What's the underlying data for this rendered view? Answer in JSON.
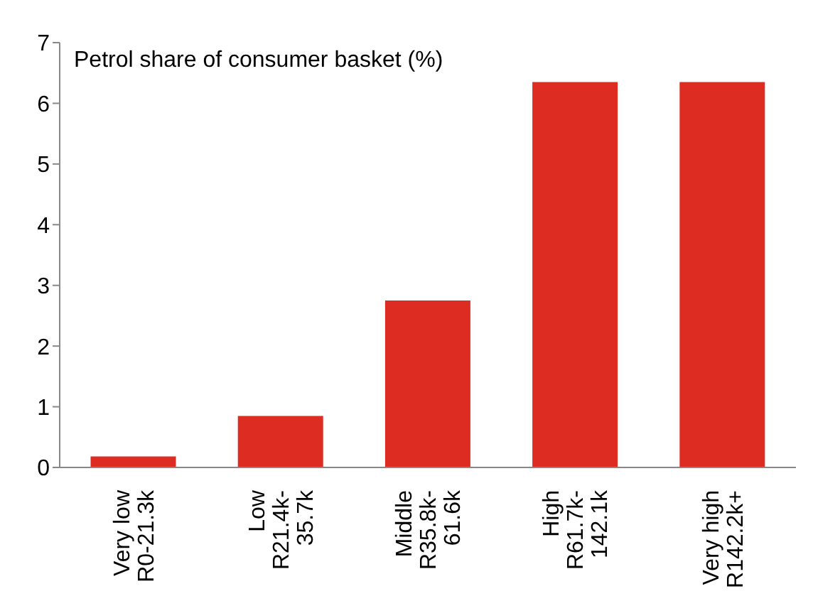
{
  "chart_data": {
    "type": "bar",
    "title": "Petrol share of consumer basket (%)",
    "categories": [
      "Very low\nR0-21.3k",
      "Low\nR21.4k-\n35.7k",
      "Middle\nR35.8k-\n61.6k",
      "High\nR61.7k-\n142.1k",
      "Very high\nR142.2k+"
    ],
    "values": [
      0.18,
      0.85,
      2.75,
      6.35,
      6.35
    ],
    "color": "#dd2c21",
    "ylim": [
      0,
      7
    ],
    "yticks": [
      0,
      1,
      2,
      3,
      4,
      5,
      6,
      7
    ],
    "grid": false,
    "legend": false
  }
}
